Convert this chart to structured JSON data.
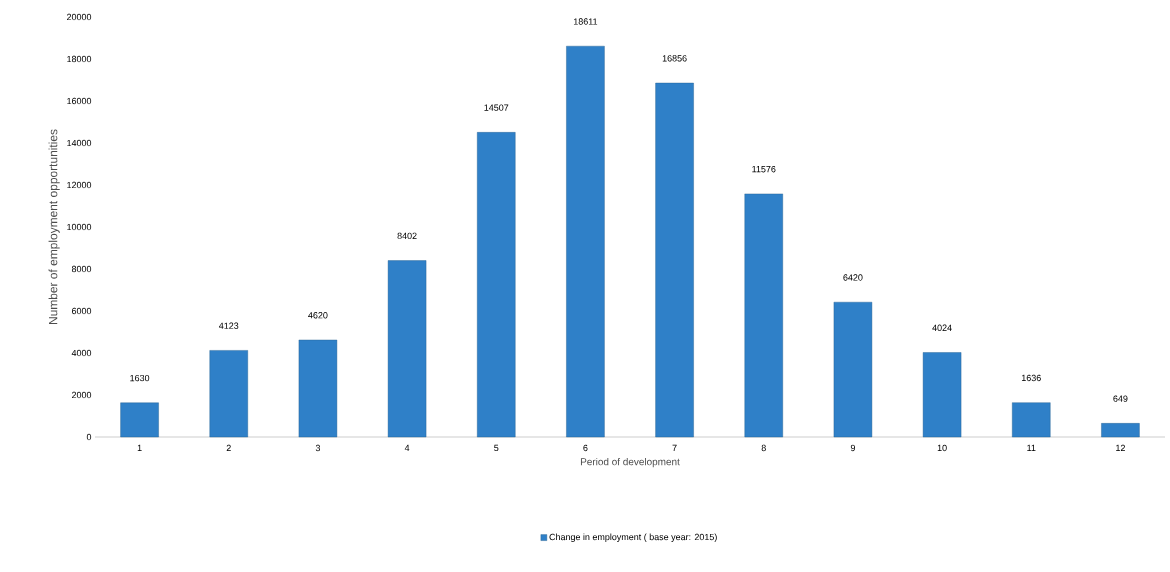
{
  "chart_data": {
    "type": "bar",
    "xlabel": "Period of development",
    "ylabel": "Number of employment opportunities",
    "categories": [
      "1",
      "2",
      "3",
      "4",
      "5",
      "6",
      "7",
      "8",
      "9",
      "10",
      "11",
      "12"
    ],
    "series": [
      {
        "name": "Change in employment ( base year: 2015)",
        "color": "#2f80c8",
        "values": [
          1630,
          4123,
          4620,
          8402,
          14507,
          18611,
          16856,
          11576,
          6420,
          4024,
          1636,
          649
        ]
      }
    ],
    "ylim": [
      0,
      20000
    ],
    "yticks": [
      0,
      2000,
      4000,
      6000,
      8000,
      10000,
      12000,
      14000,
      16000,
      18000,
      20000
    ],
    "data_labels": true,
    "legend": "bottom"
  }
}
